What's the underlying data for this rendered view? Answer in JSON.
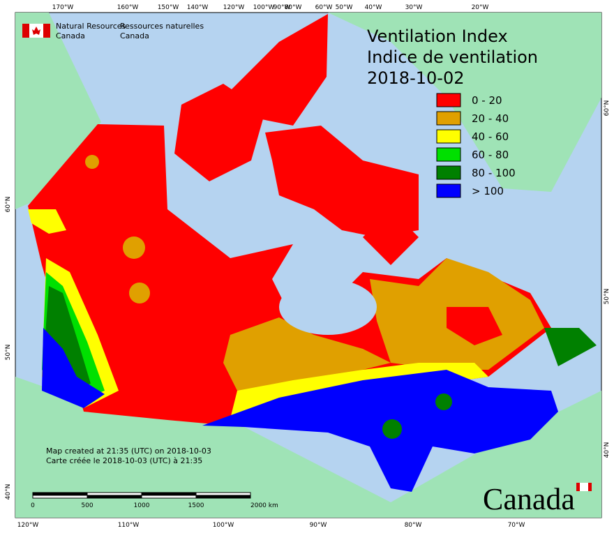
{
  "header": {
    "agency_en": [
      "Natural Resources",
      "Canada"
    ],
    "agency_fr": [
      "Ressources naturelles",
      "Canada"
    ]
  },
  "title": {
    "lines": [
      "Ventilation Index",
      "Indice de ventilation",
      "2018-10-02"
    ]
  },
  "legend": {
    "items": [
      {
        "label": "0 - 20",
        "color": "#ff0000"
      },
      {
        "label": "20 - 40",
        "color": "#e0a000"
      },
      {
        "label": "40 - 60",
        "color": "#ffff00"
      },
      {
        "label": "60 - 80",
        "color": "#00e000"
      },
      {
        "label": "80 - 100",
        "color": "#008000"
      },
      {
        "label": "> 100",
        "color": "#0000ff"
      }
    ]
  },
  "graticule": {
    "top": [
      "170°W",
      "160°W",
      "150°W",
      "140°W",
      "120°W",
      "100°W",
      "90°W",
      "80°W",
      "60°W",
      "50°W",
      "40°W",
      "30°W",
      "20°W"
    ],
    "bottom": [
      "120°W",
      "110°W",
      "100°W",
      "90°W",
      "80°W",
      "70°W"
    ],
    "left": [
      "60°N",
      "50°N",
      "40°N"
    ],
    "right": [
      "60°N",
      "50°N",
      "40°N"
    ]
  },
  "footer": {
    "lines": [
      "Map created at 21:35 (UTC) on 2018-10-03",
      "Carte créée le 2018-10-03 (UTC) à 21:35"
    ]
  },
  "scale_bar": {
    "labels": [
      "0",
      "500",
      "1000",
      "1500",
      "2000 km"
    ]
  },
  "wordmark": "Canada"
}
